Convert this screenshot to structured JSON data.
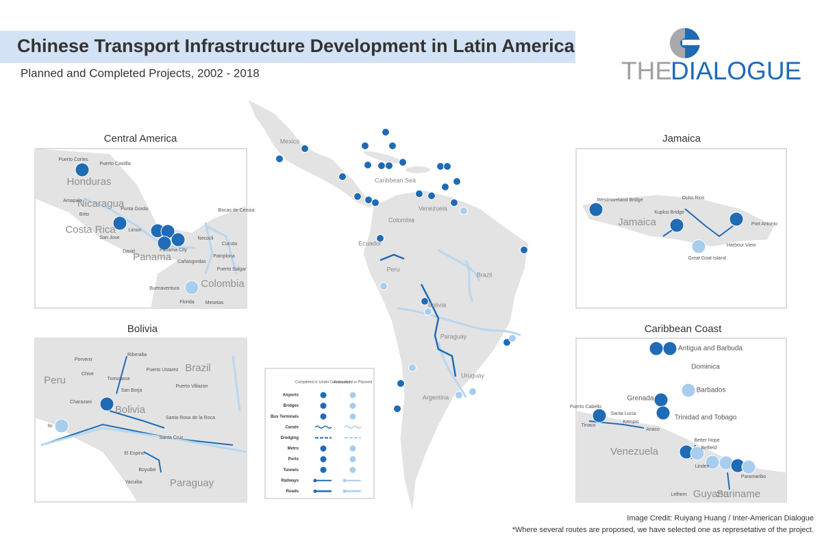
{
  "header": {
    "title": "Chinese Transport Infrastructure Development in Latin America",
    "subtitle": "Planned and Completed Projects, 2002 - 2018",
    "logo": [
      "THE",
      "DIALOGUE"
    ]
  },
  "map_labels": [
    "Mexico",
    "Caribbean Sea",
    "Venezuela",
    "Colombia",
    "Ecuador",
    "Peru",
    "Brazil",
    "Bolivia",
    "Paraguay",
    "Uruguay",
    "Argentina"
  ],
  "panels": [
    {
      "title": "Central America",
      "labels": [
        "Puerto Cortes",
        "Puerto Castilla",
        "Honduras",
        "Amapala",
        "Nicaragua",
        "Punta Gorda",
        "Brito",
        "Costa Rica",
        "Limon",
        "San Jose",
        "David",
        "Panama",
        "Panama City",
        "Necocli",
        "Cañasgordas",
        "Bocas de Ceniza",
        "Cucuta",
        "Pamplona",
        "Puerto Salgar",
        "Colombia",
        "Buenaventura",
        "Florida",
        "Mesetas"
      ]
    },
    {
      "title": "Jamaica",
      "labels": [
        "Westmoreland Bridge",
        "Ocho Rios",
        "Kuplus Bridge",
        "Jamaica",
        "Port Antonio",
        "Harbour View",
        "Great Goat Island"
      ]
    },
    {
      "title": "Bolivia",
      "labels": [
        "Riberalta",
        "Porvenir",
        "Chive",
        "Puerto Ustarez",
        "Brazil",
        "Tumupasa",
        "Puerto Villazon",
        "San Borja",
        "Peru",
        "Charazani",
        "Bolivia",
        "Santa Rosa de la Roca",
        "Ilo",
        "Santa Cruz",
        "El Espino",
        "Boyuibe",
        "Paraguay",
        "Yacuiba"
      ]
    },
    {
      "title": "Caribbean Coast",
      "labels": [
        "Antigua and Barbuda",
        "Dominica",
        "Barbados",
        "Grenada",
        "Puerto Cabello",
        "Santa Lucia",
        "Trinidad and Tobago",
        "Kempis",
        "Tinaco",
        "Anaco",
        "Better Hope",
        "Belfield",
        "Venezuela",
        "Linden",
        "Paramaribo",
        "Lethem",
        "Guyana",
        "Suriname"
      ]
    }
  ],
  "legend": {
    "headers": [
      "Completed or Under Construction",
      "Announced or Planned"
    ],
    "rows": [
      "Airports",
      "Bridges",
      "Bus Terminals",
      "Canals",
      "Dredging",
      "Metro",
      "Ports",
      "Tunnels",
      "Railways",
      "Roads"
    ]
  },
  "footer": [
    "Image Credit: Ruiyang Huang / Inter-American Dialogue",
    "*Where several routes are proposed, we have selected one as represetative of the project."
  ]
}
